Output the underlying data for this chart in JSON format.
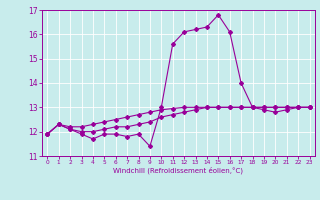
{
  "title": "",
  "xlabel": "Windchill (Refroidissement éolien,°C)",
  "background_color": "#c8ecec",
  "line_color": "#990099",
  "grid_color": "#ffffff",
  "xlim": [
    -0.5,
    23.5
  ],
  "ylim": [
    11,
    17
  ],
  "xticks": [
    0,
    1,
    2,
    3,
    4,
    5,
    6,
    7,
    8,
    9,
    10,
    11,
    12,
    13,
    14,
    15,
    16,
    17,
    18,
    19,
    20,
    21,
    22,
    23
  ],
  "yticks": [
    11,
    12,
    13,
    14,
    15,
    16,
    17
  ],
  "hours": [
    0,
    1,
    2,
    3,
    4,
    5,
    6,
    7,
    8,
    9,
    10,
    11,
    12,
    13,
    14,
    15,
    16,
    17,
    18,
    19,
    20,
    21,
    22,
    23
  ],
  "line1": [
    11.9,
    12.3,
    12.1,
    11.9,
    11.7,
    11.9,
    11.9,
    11.8,
    11.9,
    11.4,
    13.0,
    15.6,
    16.1,
    16.2,
    16.3,
    16.8,
    16.1,
    14.0,
    13.0,
    12.9,
    12.8,
    12.9,
    13.0,
    13.0
  ],
  "line2": [
    11.9,
    12.3,
    12.1,
    12.0,
    12.0,
    12.1,
    12.2,
    12.2,
    12.3,
    12.4,
    12.6,
    12.7,
    12.8,
    12.9,
    13.0,
    13.0,
    13.0,
    13.0,
    13.0,
    13.0,
    13.0,
    13.0,
    13.0,
    13.0
  ],
  "line3": [
    11.9,
    12.3,
    12.2,
    12.2,
    12.3,
    12.4,
    12.5,
    12.6,
    12.7,
    12.8,
    12.9,
    12.95,
    13.0,
    13.0,
    13.0,
    13.0,
    13.0,
    13.0,
    13.0,
    13.0,
    13.0,
    13.0,
    13.0,
    13.0
  ]
}
